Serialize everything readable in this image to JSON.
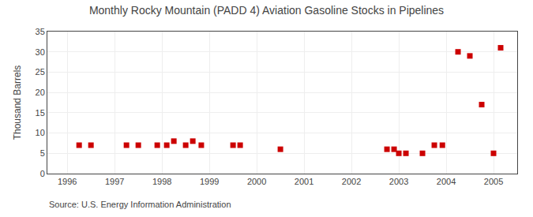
{
  "chart_data": {
    "type": "scatter",
    "title": "Monthly Rocky Mountain (PADD 4) Aviation Gasoline Stocks in Pipelines",
    "ylabel": "Thousand Barrels",
    "annotations": [
      "Source: U.S. Energy Information Administration"
    ],
    "x": [
      1996.25,
      1996.5,
      1997.25,
      1997.5,
      1997.9,
      1998.1,
      1998.25,
      1998.5,
      1998.65,
      1998.83,
      1999.5,
      1999.65,
      2000.5,
      2002.75,
      2002.9,
      2003.0,
      2003.15,
      2003.5,
      2003.75,
      2003.92,
      2004.25,
      2004.5,
      2004.75,
      2005.0,
      2005.15
    ],
    "values": [
      7,
      7,
      7,
      7,
      7,
      7,
      8,
      7,
      8,
      7,
      7,
      7,
      6,
      6,
      6,
      5,
      5,
      5,
      7,
      7,
      30,
      29,
      17,
      5,
      31
    ],
    "color": "#cc0000",
    "marker": "square",
    "xlim": [
      1995.58,
      2005.5
    ],
    "xticks": [
      1996,
      1997,
      1998,
      1999,
      2000,
      2001,
      2002,
      2003,
      2004,
      2005
    ],
    "ylim": [
      0,
      35
    ],
    "yticks": [
      0,
      5,
      10,
      15,
      20,
      25,
      30,
      35
    ],
    "grid": true
  }
}
